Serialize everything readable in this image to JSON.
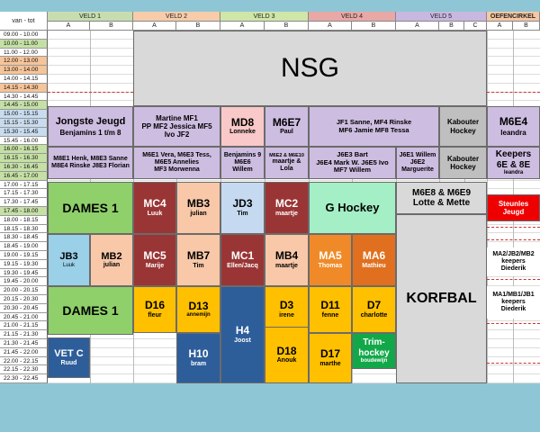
{
  "headers": {
    "van_tot": "van - tot",
    "veld1": "VELD 1",
    "veld2": "VELD 2",
    "veld3": "VELD 3",
    "veld4": "VELD 4",
    "veld5": "VELD 5",
    "oefencirkel": "OEFENCIRKEL"
  },
  "subs": [
    "A",
    "B",
    "A",
    "B",
    "A",
    "B",
    "A",
    "B",
    "A",
    "B",
    "C",
    "A",
    "B"
  ],
  "times": [
    "09.00 - 10.00",
    "10.00 - 11.00",
    "11.00 - 12.00",
    "12.00 - 13.00",
    "13.00 - 14.00",
    "14.00 - 14.15",
    "14.15 - 14.30",
    "14.30 - 14.45",
    "14.45 - 15.00",
    "15.00 - 15.15",
    "15.15 - 15.30",
    "15.30 - 15.45",
    "15.45 - 16.00",
    "16.00 - 16.15",
    "16.15 - 16.30",
    "16.30 - 16.45",
    "16.45 - 17.00",
    "17.00 - 17.15",
    "17.15 - 17.30",
    "17.30 - 17.45",
    "17.45 - 18.00",
    "18.00 - 18.15",
    "18.15 - 18.30",
    "18.30 - 18.45",
    "18.45 - 19.00",
    "19.00 - 19.15",
    "19.15 - 19.30",
    "19.30 - 19.45",
    "19.45 - 20.00",
    "20.00 - 20.15",
    "20.15 - 20.30",
    "20.30 - 20.45",
    "20.45 - 21.00",
    "21.00 - 21.15",
    "21.15 - 21.30",
    "21.30 - 21.45",
    "21.45 - 22.00",
    "22.00 - 22.15",
    "22.15 - 22.30",
    "22.30 - 22.45"
  ],
  "colors": {
    "header_veld1": "#c7ddb0",
    "header_veld2": "#f6ccaa",
    "header_veld3": "#cfe6a8",
    "header_veld4": "#e8a8a6",
    "header_veld5": "#c8b8df",
    "header_oefen": "#f5c7a4",
    "time_green": "#c5e0a5",
    "time_orange": "#f5c499",
    "time_blue": "#c9dcef"
  },
  "blocks": {
    "nsg": "NSG",
    "jongste_title": "Jongste Jeugd",
    "jongste_sub": "Benjamins 1 t/m 8",
    "martine_1": "Martine MF1",
    "martine_2": "PP MF2   Jessica MF5",
    "martine_3": "Ivo JF2",
    "md8": "MD8",
    "md8_sub": "Lonneke",
    "m6e7": "M6E7",
    "m6e7_sub": "Paul",
    "jf1_1": "JF1  Sanne, MF4 Rinske",
    "jf1_2": "MF6 Jamie MF8  Tessa",
    "kabouter1_1": "Kabouter",
    "kabouter1_2": "Hockey",
    "m6e4": "M6E4",
    "m6e4_sub": "leandra",
    "m8e1_1": "M8E1 Henk, M8E3 Sanne",
    "m8e1_2": "M8E4 Rinske J8E3 Florian",
    "m6e1_1": "M6E1  Vera, M6E3 Tess,",
    "m6e1_2": "M6E5  Annelies",
    "m6e1_3": "MF3  Morwenna",
    "benjamins9_1": "Benjamins 9",
    "benjamins9_2": "M6E6",
    "benjamins9_3": "Willem",
    "m6e2_1": "M6E2 & M6E10",
    "m6e2_2": "maartje &",
    "m6e2_3": "Lola",
    "j6e3_1": "J6E3 Bart",
    "j6e3_2": "J6E4 Mark W.  J6E5 Ivo",
    "j6e3_3": "MF7 Willem",
    "j6e1_1": "J6E1 Willem",
    "j6e1_2": "J6E2",
    "j6e1_3": "Marguerite",
    "kabouter2_1": "Kabouter",
    "kabouter2_2": "Hockey",
    "keepers_1": "Keepers",
    "keepers_2": "6E & 8E",
    "keepers_3": "leandra",
    "dames1a": "DAMES 1",
    "mc4": "MC4",
    "mc4_sub": "Luuk",
    "mb3": "MB3",
    "mb3_sub": "julian",
    "jd3": "JD3",
    "jd3_sub": "Tim",
    "mc2": "MC2",
    "mc2_sub": "maartje",
    "ghockey": "G Hockey",
    "m6e8_1": "M6E8 & M6E9",
    "m6e8_2": "Lotte & Mette",
    "steunles_1": "Steunles",
    "steunles_2": "Jeugd",
    "jb3": "JB3",
    "jb3_sub": "Luuk",
    "mb2": "MB2",
    "mb2_sub": "julian",
    "mc5": "MC5",
    "mc5_sub": "Marije",
    "mb7": "MB7",
    "mb7_sub": "Tim",
    "mc1": "MC1",
    "mc1_sub": "Ellen/Jacq",
    "mb4": "MB4",
    "mb4_sub": "maartje",
    "ma5": "MA5",
    "ma5_sub": "Thomas",
    "ma6": "MA6",
    "ma6_sub": "Mathieu",
    "ma2_1": "MA2/JB2/MB2",
    "ma2_2": "keepers",
    "ma2_3": "Diederik",
    "dames1b": "DAMES 1",
    "d16": "D16",
    "d16_sub": "fleur",
    "d13": "D13",
    "d13_sub": "annemijn",
    "h4": "H4",
    "h4_sub": "Joost",
    "d3": "D3",
    "d3_sub": "irene",
    "d11": "D11",
    "d11_sub": "fenne",
    "d7": "D7",
    "d7_sub": "charlotte",
    "korfbal": "KORFBAL",
    "ma1_1": "MA1/MB1/JB1",
    "ma1_2": "keepers",
    "ma1_3": "Diederik",
    "h10": "H10",
    "h10_sub": "bram",
    "d18": "D18",
    "d18_sub": "Anouk",
    "d17": "D17",
    "d17_sub": "marthe",
    "trim_1": "Trim-",
    "trim_2": "hockey",
    "trim_3": "boudewijn",
    "vetc": "VET C",
    "vetc_sub": "Ruud"
  }
}
